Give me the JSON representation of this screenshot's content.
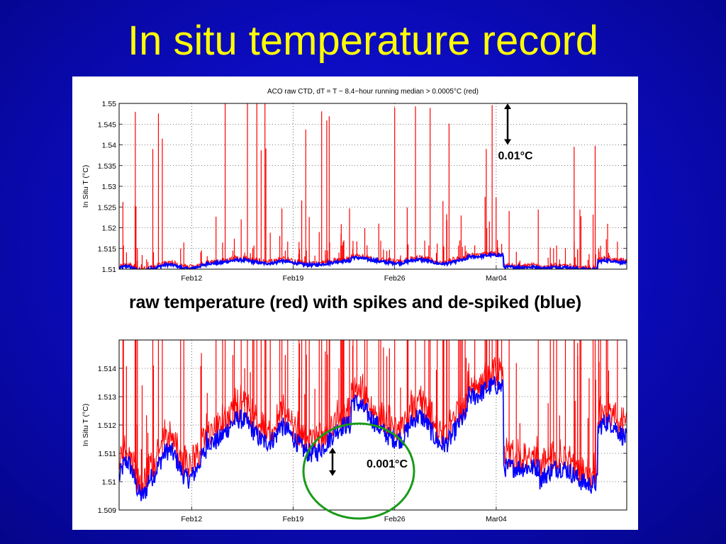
{
  "slide": {
    "title": "In situ temperature record",
    "caption": "raw temperature (red) with spikes and de-spiked (blue)",
    "colors": {
      "background": "#0c0cc2",
      "title": "#ffff00",
      "raw": "#ff0000",
      "despiked": "#0000ff",
      "highlight_circle": "#1a9a1a"
    }
  },
  "chart_data": [
    {
      "type": "line",
      "title": "ACO raw CTD, dT = T − 8.4−hour running median > 0.0005°C (red)",
      "xlabel": "",
      "ylabel": "In Situ T (°C)",
      "x_ticks": [
        "Feb12",
        "Feb19",
        "Feb26",
        "Mar04"
      ],
      "y_ticks": [
        "1.51",
        "1.515",
        "1.52",
        "1.525",
        "1.53",
        "1.535",
        "1.54",
        "1.545",
        "1.55"
      ],
      "ylim": [
        1.51,
        1.55
      ],
      "grid": true,
      "series": [
        {
          "values": "raw temperature with spikes"
        },
        {
          "values": "de-spiked temperature"
        }
      ],
      "annotation": {
        "text": "0.01°C",
        "span": 0.01
      }
    },
    {
      "type": "line",
      "title": "",
      "xlabel": "",
      "ylabel": "In Situ T (°C)",
      "x_ticks": [
        "Feb12",
        "Feb19",
        "Feb26",
        "Mar04"
      ],
      "y_ticks": [
        "1.509",
        "1.51",
        "1.511",
        "1.512",
        "1.513",
        "1.514"
      ],
      "ylim": [
        1.509,
        1.515
      ],
      "grid": true,
      "series": [
        {
          "values": "raw temperature with spikes"
        },
        {
          "values": "de-spiked temperature"
        }
      ],
      "annotation": {
        "text": "0.001°C",
        "span": 0.001
      }
    }
  ]
}
